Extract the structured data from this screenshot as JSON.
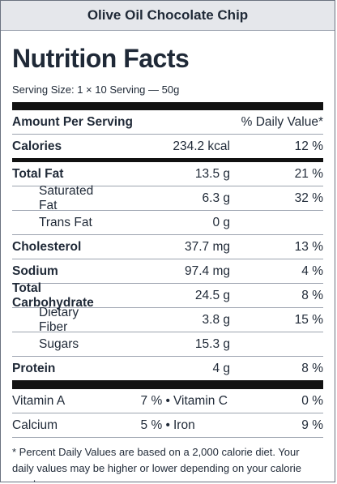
{
  "product_name": "Olive Oil Chocolate Chip",
  "title": "Nutrition Facts",
  "serving_size": "Serving Size: 1 × 10 Serving — 50g",
  "amount_per_serving": "Amount Per Serving",
  "daily_value_header": "% Daily Value*",
  "nutrients": [
    {
      "name": "Calories",
      "amount": "234.2 kcal",
      "dv": "12 %",
      "bold": true,
      "indent": false
    },
    {
      "name": "Total Fat",
      "amount": "13.5 g",
      "dv": "21 %",
      "bold": true,
      "indent": false
    },
    {
      "name": "Saturated Fat",
      "amount": "6.3 g",
      "dv": "32 %",
      "bold": false,
      "indent": true
    },
    {
      "name": "Trans Fat",
      "amount": "0 g",
      "dv": "",
      "bold": false,
      "indent": true
    },
    {
      "name": "Cholesterol",
      "amount": "37.7 mg",
      "dv": "13 %",
      "bold": true,
      "indent": false
    },
    {
      "name": "Sodium",
      "amount": "97.4 mg",
      "dv": "4 %",
      "bold": true,
      "indent": false
    },
    {
      "name": "Total Carbohydrate",
      "amount": "24.5 g",
      "dv": "8 %",
      "bold": true,
      "indent": false
    },
    {
      "name": "Dietary Fiber",
      "amount": "3.8 g",
      "dv": "15 %",
      "bold": false,
      "indent": true
    },
    {
      "name": "Sugars",
      "amount": "15.3 g",
      "dv": "",
      "bold": false,
      "indent": true
    },
    {
      "name": "Protein",
      "amount": "4 g",
      "dv": "8 %",
      "bold": true,
      "indent": false
    }
  ],
  "vitamins": [
    {
      "left_name": "Vitamin A",
      "left_value": "7 % •",
      "right_name": "Vitamin C",
      "right_value": "0 %"
    },
    {
      "left_name": "Calcium",
      "left_value": "5 % •",
      "right_name": "Iron",
      "right_value": "9 %"
    }
  ],
  "footnote": "* Percent Daily Values are based on a 2,000 calorie diet. Your daily values may be higher or lower depending on your calorie needs."
}
